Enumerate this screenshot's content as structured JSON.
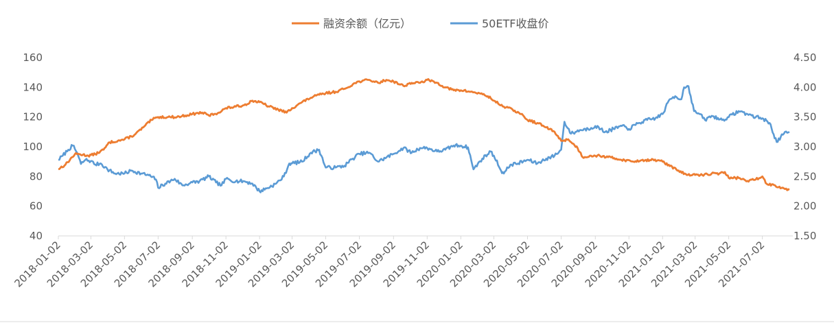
{
  "chart_data": {
    "type": "line",
    "title": "",
    "legend_position": "top-center",
    "grid": false,
    "x_start": "2018-01-02",
    "x_end": "2021-08-20",
    "x_ticks": [
      "2018-01-02",
      "2018-03-02",
      "2018-05-02",
      "2018-07-02",
      "2018-09-02",
      "2018-11-02",
      "2019-01-02",
      "2019-03-02",
      "2019-05-02",
      "2019-07-02",
      "2019-09-02",
      "2019-11-02",
      "2020-01-02",
      "2020-03-02",
      "2020-05-02",
      "2020-07-02",
      "2020-09-02",
      "2020-11-02",
      "2021-01-02",
      "2021-03-02",
      "2021-05-02",
      "2021-07-02"
    ],
    "y_left": {
      "min": 40,
      "max": 160,
      "ticks": [
        "40",
        "60",
        "80",
        "100",
        "120",
        "140",
        "160"
      ]
    },
    "y_right": {
      "min": 1.5,
      "max": 4.5,
      "ticks": [
        "1.50",
        "2.00",
        "2.50",
        "3.00",
        "3.50",
        "4.00",
        "4.50"
      ]
    },
    "series": [
      {
        "name": "融资余额（亿元）",
        "axis": "left",
        "color": "#ED7D31",
        "points": [
          [
            "2018-01-02",
            85
          ],
          [
            "2018-01-15",
            88
          ],
          [
            "2018-02-01",
            95
          ],
          [
            "2018-02-10",
            95
          ],
          [
            "2018-02-25",
            94
          ],
          [
            "2018-03-10",
            95
          ],
          [
            "2018-03-25",
            98
          ],
          [
            "2018-04-05",
            103
          ],
          [
            "2018-04-20",
            104
          ],
          [
            "2018-05-02",
            105
          ],
          [
            "2018-05-20",
            108
          ],
          [
            "2018-06-05",
            113
          ],
          [
            "2018-06-20",
            118
          ],
          [
            "2018-07-02",
            120
          ],
          [
            "2018-07-20",
            120
          ],
          [
            "2018-08-05",
            120
          ],
          [
            "2018-08-20",
            121
          ],
          [
            "2018-09-02",
            122
          ],
          [
            "2018-09-20",
            123
          ],
          [
            "2018-10-02",
            121
          ],
          [
            "2018-10-20",
            123
          ],
          [
            "2018-11-02",
            126
          ],
          [
            "2018-11-20",
            127
          ],
          [
            "2018-12-05",
            128
          ],
          [
            "2018-12-20",
            131
          ],
          [
            "2019-01-02",
            130
          ],
          [
            "2019-01-20",
            127
          ],
          [
            "2019-02-05",
            125
          ],
          [
            "2019-02-20",
            123
          ],
          [
            "2019-03-02",
            126
          ],
          [
            "2019-03-20",
            130
          ],
          [
            "2019-04-05",
            133
          ],
          [
            "2019-04-20",
            135
          ],
          [
            "2019-05-02",
            136
          ],
          [
            "2019-05-20",
            137
          ],
          [
            "2019-06-05",
            139
          ],
          [
            "2019-06-20",
            142
          ],
          [
            "2019-07-02",
            144
          ],
          [
            "2019-07-20",
            145
          ],
          [
            "2019-08-05",
            143
          ],
          [
            "2019-08-20",
            145
          ],
          [
            "2019-09-02",
            144
          ],
          [
            "2019-09-20",
            141
          ],
          [
            "2019-10-05",
            143
          ],
          [
            "2019-10-20",
            143
          ],
          [
            "2019-11-02",
            145
          ],
          [
            "2019-11-20",
            143
          ],
          [
            "2019-12-05",
            140
          ],
          [
            "2019-12-20",
            138
          ],
          [
            "2020-01-02",
            138
          ],
          [
            "2020-01-20",
            137
          ],
          [
            "2020-02-05",
            136
          ],
          [
            "2020-02-20",
            134
          ],
          [
            "2020-03-02",
            131
          ],
          [
            "2020-03-20",
            127
          ],
          [
            "2020-04-05",
            125
          ],
          [
            "2020-04-20",
            122
          ],
          [
            "2020-05-02",
            118
          ],
          [
            "2020-05-20",
            116
          ],
          [
            "2020-06-05",
            113
          ],
          [
            "2020-06-20",
            110
          ],
          [
            "2020-07-02",
            104
          ],
          [
            "2020-07-15",
            105
          ],
          [
            "2020-08-01",
            99
          ],
          [
            "2020-08-10",
            93
          ],
          [
            "2020-08-25",
            94
          ],
          [
            "2020-09-10",
            94
          ],
          [
            "2020-09-25",
            93
          ],
          [
            "2020-10-10",
            92
          ],
          [
            "2020-10-25",
            91
          ],
          [
            "2020-11-10",
            90
          ],
          [
            "2020-11-25",
            91
          ],
          [
            "2020-12-10",
            91
          ],
          [
            "2020-12-25",
            91
          ],
          [
            "2021-01-02",
            90
          ],
          [
            "2021-01-15",
            87
          ],
          [
            "2021-01-31",
            84
          ],
          [
            "2021-02-15",
            81
          ],
          [
            "2021-03-02",
            81
          ],
          [
            "2021-03-15",
            81
          ],
          [
            "2021-04-01",
            82
          ],
          [
            "2021-04-15",
            82
          ],
          [
            "2021-04-25",
            83
          ],
          [
            "2021-05-02",
            79
          ],
          [
            "2021-05-20",
            79
          ],
          [
            "2021-06-05",
            77
          ],
          [
            "2021-06-20",
            78
          ],
          [
            "2021-07-02",
            80
          ],
          [
            "2021-07-10",
            75
          ],
          [
            "2021-07-25",
            74
          ],
          [
            "2021-08-10",
            72
          ],
          [
            "2021-08-20",
            71
          ]
        ]
      },
      {
        "name": "50ETF收盘价",
        "axis": "right",
        "color": "#5B9BD5",
        "points": [
          [
            "2018-01-02",
            2.78
          ],
          [
            "2018-01-10",
            2.85
          ],
          [
            "2018-01-20",
            2.95
          ],
          [
            "2018-01-28",
            3.02
          ],
          [
            "2018-02-05",
            2.9
          ],
          [
            "2018-02-12",
            2.71
          ],
          [
            "2018-02-20",
            2.78
          ],
          [
            "2018-03-02",
            2.76
          ],
          [
            "2018-03-10",
            2.7
          ],
          [
            "2018-03-20",
            2.72
          ],
          [
            "2018-04-01",
            2.62
          ],
          [
            "2018-04-15",
            2.55
          ],
          [
            "2018-05-02",
            2.55
          ],
          [
            "2018-05-15",
            2.6
          ],
          [
            "2018-06-01",
            2.55
          ],
          [
            "2018-06-15",
            2.52
          ],
          [
            "2018-06-28",
            2.45
          ],
          [
            "2018-07-02",
            2.31
          ],
          [
            "2018-07-15",
            2.38
          ],
          [
            "2018-08-01",
            2.46
          ],
          [
            "2018-08-15",
            2.35
          ],
          [
            "2018-09-02",
            2.4
          ],
          [
            "2018-09-15",
            2.42
          ],
          [
            "2018-10-02",
            2.5
          ],
          [
            "2018-10-15",
            2.4
          ],
          [
            "2018-10-25",
            2.35
          ],
          [
            "2018-11-02",
            2.46
          ],
          [
            "2018-11-20",
            2.42
          ],
          [
            "2018-12-05",
            2.42
          ],
          [
            "2018-12-20",
            2.38
          ],
          [
            "2019-01-02",
            2.25
          ],
          [
            "2019-01-15",
            2.3
          ],
          [
            "2019-02-01",
            2.38
          ],
          [
            "2019-02-15",
            2.5
          ],
          [
            "2019-02-25",
            2.72
          ],
          [
            "2019-03-02",
            2.72
          ],
          [
            "2019-03-20",
            2.75
          ],
          [
            "2019-04-05",
            2.9
          ],
          [
            "2019-04-20",
            2.95
          ],
          [
            "2019-05-02",
            2.65
          ],
          [
            "2019-05-20",
            2.65
          ],
          [
            "2019-06-05",
            2.68
          ],
          [
            "2019-06-20",
            2.8
          ],
          [
            "2019-07-02",
            2.88
          ],
          [
            "2019-07-20",
            2.9
          ],
          [
            "2019-08-05",
            2.75
          ],
          [
            "2019-08-20",
            2.82
          ],
          [
            "2019-09-02",
            2.88
          ],
          [
            "2019-09-20",
            2.98
          ],
          [
            "2019-10-05",
            2.9
          ],
          [
            "2019-10-20",
            2.98
          ],
          [
            "2019-11-02",
            2.98
          ],
          [
            "2019-11-20",
            2.92
          ],
          [
            "2019-12-05",
            2.95
          ],
          [
            "2019-12-20",
            3.02
          ],
          [
            "2020-01-02",
            3.02
          ],
          [
            "2020-01-15",
            2.99
          ],
          [
            "2020-01-25",
            2.62
          ],
          [
            "2020-02-10",
            2.8
          ],
          [
            "2020-02-25",
            2.92
          ],
          [
            "2020-03-02",
            2.85
          ],
          [
            "2020-03-15",
            2.6
          ],
          [
            "2020-03-20",
            2.55
          ],
          [
            "2020-04-01",
            2.7
          ],
          [
            "2020-04-15",
            2.72
          ],
          [
            "2020-05-02",
            2.78
          ],
          [
            "2020-05-20",
            2.72
          ],
          [
            "2020-06-05",
            2.8
          ],
          [
            "2020-06-20",
            2.85
          ],
          [
            "2020-07-02",
            2.95
          ],
          [
            "2020-07-08",
            3.42
          ],
          [
            "2020-07-20",
            3.22
          ],
          [
            "2020-08-05",
            3.28
          ],
          [
            "2020-08-20",
            3.3
          ],
          [
            "2020-09-02",
            3.35
          ],
          [
            "2020-09-20",
            3.25
          ],
          [
            "2020-10-05",
            3.3
          ],
          [
            "2020-10-20",
            3.35
          ],
          [
            "2020-11-02",
            3.3
          ],
          [
            "2020-11-20",
            3.4
          ],
          [
            "2020-12-05",
            3.45
          ],
          [
            "2020-12-20",
            3.48
          ],
          [
            "2021-01-02",
            3.55
          ],
          [
            "2021-01-15",
            3.8
          ],
          [
            "2021-01-25",
            3.85
          ],
          [
            "2021-02-05",
            3.8
          ],
          [
            "2021-02-10",
            4.0
          ],
          [
            "2021-02-18",
            4.02
          ],
          [
            "2021-02-28",
            3.6
          ],
          [
            "2021-03-10",
            3.55
          ],
          [
            "2021-03-20",
            3.45
          ],
          [
            "2021-04-01",
            3.52
          ],
          [
            "2021-04-20",
            3.45
          ],
          [
            "2021-05-02",
            3.5
          ],
          [
            "2021-05-20",
            3.6
          ],
          [
            "2021-06-05",
            3.55
          ],
          [
            "2021-06-20",
            3.5
          ],
          [
            "2021-07-02",
            3.48
          ],
          [
            "2021-07-15",
            3.4
          ],
          [
            "2021-07-28",
            3.08
          ],
          [
            "2021-08-10",
            3.22
          ],
          [
            "2021-08-20",
            3.25
          ]
        ]
      }
    ]
  }
}
